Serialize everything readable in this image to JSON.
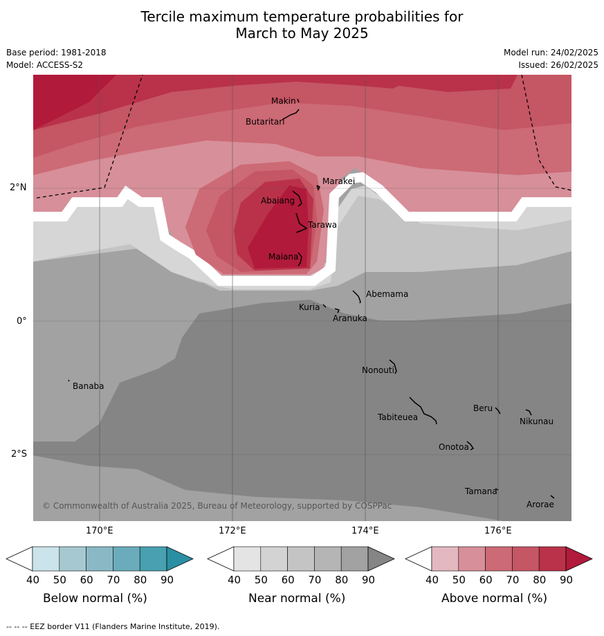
{
  "title_line1": "Tercile maximum temperature probabilities for",
  "title_line2": "March to May 2025",
  "base_period": "Base period: 1981-2018",
  "model": "Model: ACCESS-S2",
  "model_run": "Model run: 24/02/2025",
  "issued": "Issued: 26/02/2025",
  "lat_labels": [
    "2°N",
    "0°",
    "2°S"
  ],
  "lon_labels": [
    "170°E",
    "172°E",
    "174°E",
    "176°E"
  ],
  "places": [
    "Makin",
    "Butaritari",
    "Marakei",
    "Abaiang",
    "Tarawa",
    "Maiana",
    "Abemama",
    "Kuria",
    "Aranuka",
    "Nonouti",
    "Banaba",
    "Tabiteuea",
    "Beru",
    "Nikunau",
    "Onotoa",
    "Tamana",
    "Arorae"
  ],
  "copyright": "© Commonwealth of Australia 2025, Bureau of Meteorology, supported by COSPPac",
  "footnote": "--  --  -- EEZ border V11 (Flanders Marine Institute, 2019).",
  "colorbars": [
    {
      "title": "Below normal (%)",
      "ticks": [
        "40",
        "50",
        "60",
        "70",
        "80",
        "90"
      ],
      "colors": [
        "#cbe3ea",
        "#a6c9d1",
        "#8ab9c5",
        "#6aacbb",
        "#48a0b0",
        "#2b8fa3"
      ]
    },
    {
      "title": "Near normal (%)",
      "ticks": [
        "40",
        "50",
        "60",
        "70",
        "80",
        "90"
      ],
      "colors": [
        "#e4e4e4",
        "#d3d3d3",
        "#c4c4c4",
        "#b5b5b5",
        "#a2a2a2",
        "#858585"
      ]
    },
    {
      "title": "Above normal (%)",
      "ticks": [
        "40",
        "50",
        "60",
        "70",
        "80",
        "90"
      ],
      "colors": [
        "#e3b8c0",
        "#d78f99",
        "#cc6a75",
        "#c55664",
        "#b93249",
        "#b11a3b"
      ]
    }
  ],
  "map_colors": {
    "above_40": "#d78f99",
    "above_50": "#cc6a75",
    "above_60": "#c55664",
    "above_70": "#b93249",
    "above_80": "#b11a3b",
    "near_40": "#d6d6d6",
    "near_50": "#c4c4c4",
    "near_60": "#a2a2a2",
    "near_70": "#858585"
  }
}
